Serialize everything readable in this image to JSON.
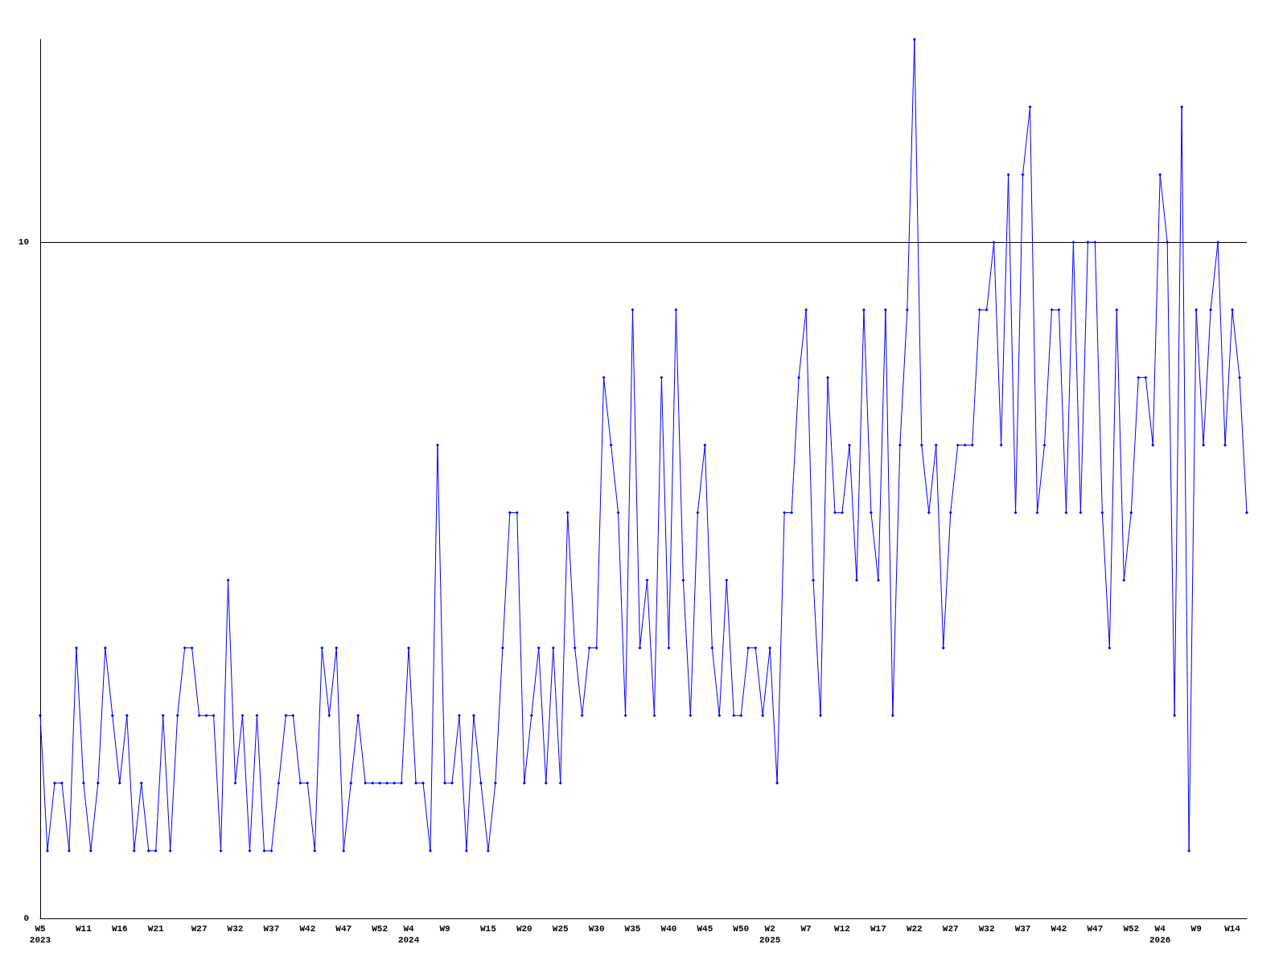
{
  "chart_data": {
    "type": "line",
    "color": "#0000ff",
    "marker": "diamond",
    "grid": "y",
    "ylim": [
      0,
      13
    ],
    "yticks": [
      0,
      10
    ],
    "categories": [
      "W5\n2023",
      null,
      null,
      null,
      null,
      null,
      "W11",
      null,
      null,
      null,
      null,
      "W16",
      null,
      null,
      null,
      null,
      "W21",
      null,
      null,
      null,
      null,
      null,
      "W27",
      null,
      null,
      null,
      null,
      "W32",
      null,
      null,
      null,
      null,
      "W37",
      null,
      null,
      null,
      null,
      "W42",
      null,
      null,
      null,
      null,
      "W47",
      null,
      null,
      null,
      null,
      "W52",
      null,
      null,
      null,
      "W4\n2024",
      null,
      null,
      null,
      null,
      "W9",
      null,
      null,
      null,
      null,
      null,
      "W15",
      null,
      null,
      null,
      null,
      "W20",
      null,
      null,
      null,
      null,
      "W25",
      null,
      null,
      null,
      null,
      "W30",
      null,
      null,
      null,
      null,
      "W35",
      null,
      null,
      null,
      null,
      "W40",
      null,
      null,
      null,
      null,
      "W45",
      null,
      null,
      null,
      null,
      "W50",
      null,
      null,
      null,
      "W2\n2025",
      null,
      null,
      null,
      null,
      "W7",
      null,
      null,
      null,
      null,
      "W12",
      null,
      null,
      null,
      null,
      "W17",
      null,
      null,
      null,
      null,
      "W22",
      null,
      null,
      null,
      null,
      "W27",
      null,
      null,
      null,
      null,
      "W32",
      null,
      null,
      null,
      null,
      "W37",
      null,
      null,
      null,
      null,
      "W42",
      null,
      null,
      null,
      null,
      "W47",
      null,
      null,
      null,
      null,
      "W52",
      null,
      null,
      null,
      "W4\n2026",
      null,
      null,
      null,
      null,
      "W9",
      null,
      null,
      null,
      null,
      "W14",
      null,
      null
    ],
    "values": [
      3,
      1,
      2,
      2,
      1,
      4,
      2,
      1,
      2,
      4,
      3,
      2,
      3,
      1,
      2,
      1,
      1,
      3,
      1,
      3,
      4,
      4,
      3,
      3,
      3,
      1,
      5,
      2,
      3,
      1,
      3,
      1,
      1,
      2,
      3,
      3,
      2,
      2,
      1,
      4,
      3,
      4,
      1,
      2,
      3,
      2,
      2,
      2,
      2,
      2,
      2,
      4,
      2,
      2,
      1,
      7,
      2,
      2,
      3,
      1,
      3,
      2,
      1,
      2,
      4,
      6,
      6,
      2,
      3,
      4,
      2,
      4,
      2,
      6,
      4,
      3,
      4,
      4,
      8,
      7,
      6,
      3,
      9,
      4,
      5,
      3,
      8,
      4,
      9,
      5,
      3,
      6,
      7,
      4,
      3,
      5,
      3,
      3,
      4,
      4,
      3,
      4,
      2,
      6,
      6,
      8,
      9,
      5,
      3,
      8,
      6,
      6,
      7,
      5,
      9,
      6,
      5,
      9,
      3,
      7,
      9,
      13,
      7,
      6,
      7,
      4,
      6,
      7,
      7,
      7,
      9,
      9,
      10,
      7,
      11,
      6,
      11,
      12,
      6,
      7,
      9,
      9,
      6,
      10,
      6,
      10,
      10,
      6,
      4,
      9,
      5,
      6,
      8,
      8,
      7,
      11,
      10,
      3,
      12,
      1,
      9,
      7,
      9,
      10,
      7,
      9,
      8,
      6
    ]
  }
}
